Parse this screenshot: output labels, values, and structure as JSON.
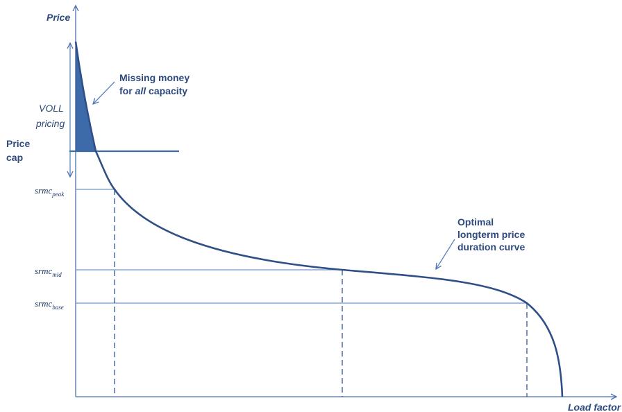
{
  "axes": {
    "y_label": "Price",
    "x_label": "Load factor"
  },
  "labels": {
    "missing_money_line1": "Missing money",
    "missing_money_line2_prefix": "for ",
    "missing_money_line2_italic": "all",
    "missing_money_line2_suffix": " capacity",
    "voll_line1": "VOLL",
    "voll_line2": "pricing",
    "price_cap_line1": "Price",
    "price_cap_line2": "cap",
    "curve_line1": "Optimal",
    "curve_line2": "longterm price",
    "curve_line3": "duration curve"
  },
  "levels": [
    {
      "base": "srmc",
      "sub": "peak"
    },
    {
      "base": "srmc",
      "sub": "mid"
    },
    {
      "base": "srmc",
      "sub": "base"
    }
  ],
  "colors": {
    "text": "#2e4a7d",
    "curve": "#2f4f87",
    "missing_money_fill": "#3d6aa8",
    "axis": "#4a72b0"
  }
}
